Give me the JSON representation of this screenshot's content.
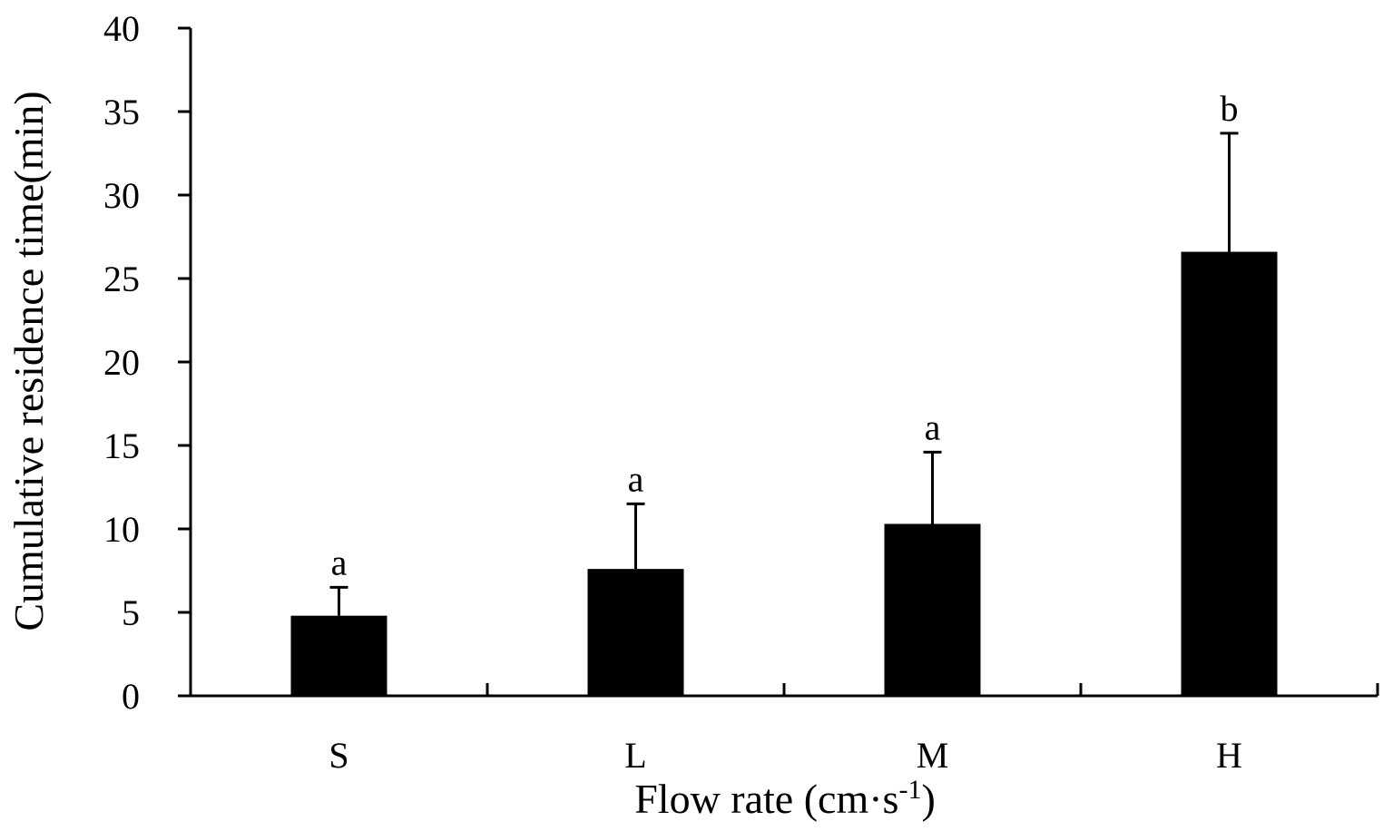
{
  "chart_data": {
    "type": "bar",
    "categories": [
      "S",
      "L",
      "M",
      "H"
    ],
    "values": [
      4.8,
      7.6,
      10.3,
      26.6
    ],
    "errors": [
      1.7,
      3.9,
      4.3,
      7.1
    ],
    "significance": [
      "a",
      "a",
      "a",
      "b"
    ],
    "xlabel": "Flow rate (cm·s",
    "xlabel_sup": "-1",
    "xlabel_end": ")",
    "ylabel": "Cumulative residence time(min)",
    "ylim": [
      0,
      40
    ],
    "yticks": [
      "0",
      "5",
      "10",
      "15",
      "20",
      "25",
      "30",
      "35",
      "40"
    ],
    "bar_color": "#000000",
    "grid": false,
    "legend": "none"
  }
}
